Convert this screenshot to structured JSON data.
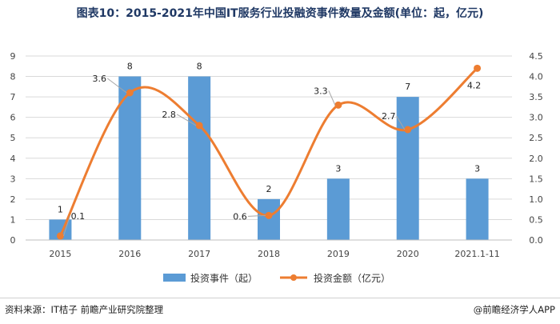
{
  "title": "图表10：2015-2021年中国IT服务行业投融资事件数量及金额(单位：起，亿元)",
  "footer": {
    "source": "资料来源：IT桔子 前瞻产业研究院整理",
    "brand": "@前瞻经济学人APP"
  },
  "chart_data": {
    "type": "bar",
    "categories": [
      "2015",
      "2016",
      "2017",
      "2018",
      "2019",
      "2020",
      "2021.1-11"
    ],
    "series": [
      {
        "name": "投资事件（起）",
        "type": "bar",
        "axis": "left",
        "values": [
          1,
          8,
          8,
          2,
          3,
          7,
          3
        ],
        "color": "#5b9bd5"
      },
      {
        "name": "投资金额（亿元）",
        "type": "line",
        "axis": "right",
        "smooth": true,
        "values": [
          0.1,
          3.6,
          2.8,
          0.6,
          3.3,
          2.7,
          4.2
        ],
        "color": "#ed7d31"
      }
    ],
    "y_left": {
      "min": 0,
      "max": 9,
      "step": 1
    },
    "y_right": {
      "min": 0,
      "max": 4.5,
      "step": 0.5
    },
    "grid": true,
    "legend": "bottom"
  }
}
